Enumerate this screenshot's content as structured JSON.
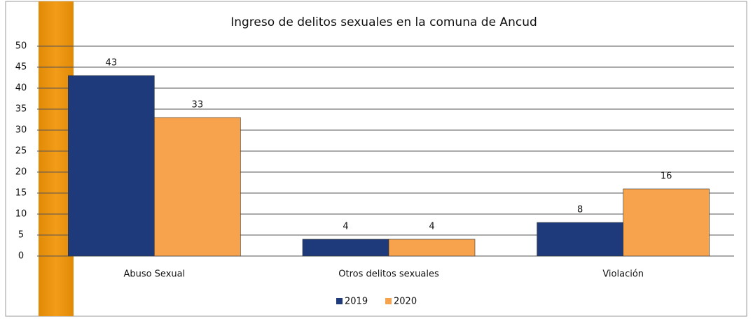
{
  "chart_data": {
    "type": "bar",
    "title": "Ingreso de delitos sexuales en la comuna de Ancud",
    "categories": [
      "Abuso Sexual",
      "Otros delitos sexuales",
      "Violación"
    ],
    "series": [
      {
        "name": "2019",
        "color": "#1f3a7a",
        "values": [
          43,
          4,
          8
        ]
      },
      {
        "name": "2020",
        "color": "#f7a24c",
        "values": [
          33,
          4,
          16
        ]
      }
    ],
    "ylim": [
      0,
      50
    ],
    "yticks": [
      0,
      5,
      10,
      15,
      20,
      25,
      30,
      35,
      40,
      45,
      50
    ],
    "grid": true,
    "legend": "bottom"
  }
}
